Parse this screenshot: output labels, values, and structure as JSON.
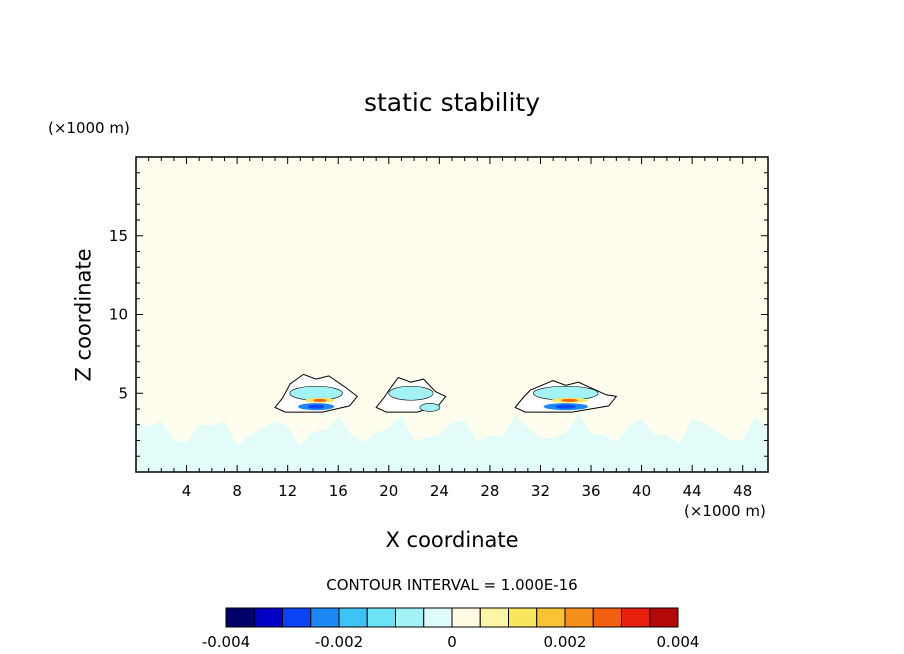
{
  "chart_data": {
    "type": "heatmap",
    "title": "static stability",
    "xlabel": "X coordinate",
    "ylabel": "Z coordinate",
    "x_unit": "(×1000 m)",
    "y_unit": "(×1000 m)",
    "xlim": [
      0,
      50
    ],
    "ylim": [
      0,
      20
    ],
    "x_ticks": [
      4,
      8,
      12,
      16,
      20,
      24,
      28,
      32,
      36,
      40,
      44,
      48
    ],
    "y_ticks": [
      5,
      10,
      15
    ],
    "background_value_color": "#fefdee",
    "contour_interval_text": "CONTOUR INTERVAL = 1.000E-16",
    "colorbar": {
      "range": [
        -0.004,
        0.004
      ],
      "tick_values": [
        -0.004,
        -0.002,
        0,
        0.002,
        0.004
      ],
      "tick_labels": [
        "-0.004",
        "-0.002",
        "0",
        "0.002",
        "0.004"
      ],
      "colors": [
        "#00006b",
        "#0000c6",
        "#0a42f5",
        "#1c88f6",
        "#3ec3f5",
        "#6ce3f6",
        "#a3f2f6",
        "#ddfbfb",
        "#fefbe2",
        "#fdf4a6",
        "#fae55e",
        "#f9c334",
        "#f68f1a",
        "#f25f10",
        "#e82010",
        "#b40808"
      ]
    },
    "features": [
      {
        "x_range": [
          11,
          17.5
        ],
        "z_range": [
          3.8,
          6.2
        ],
        "note": "cloud region with negative/positive dipole near z 4-5"
      },
      {
        "x_range": [
          19,
          24.5
        ],
        "z_range": [
          3.8,
          6.0
        ],
        "note": "weak cloud region"
      },
      {
        "x_range": [
          30,
          38
        ],
        "z_range": [
          3.8,
          5.8
        ],
        "note": "cloud region with negative/positive dipole near z 4-5"
      },
      {
        "x_range": [
          0,
          50
        ],
        "z_range": [
          0,
          3.8
        ],
        "note": "weak negative values in boundary layer"
      }
    ]
  }
}
